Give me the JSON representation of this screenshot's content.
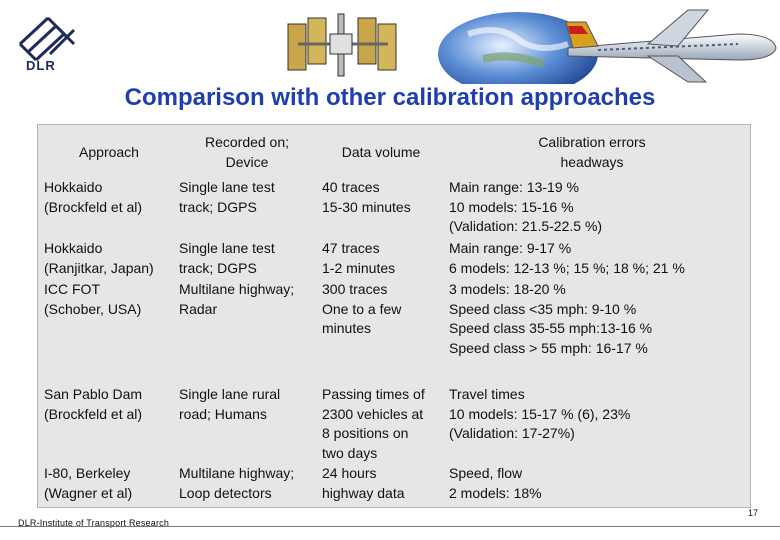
{
  "logo": {
    "text": "DLR"
  },
  "title": "Comparison with other calibration approaches",
  "table": {
    "headers": [
      "Approach",
      "Recorded on;\nDevice",
      "Data volume",
      "Calibration errors\nheadways"
    ],
    "rows": [
      [
        "Hokkaido\n(Brockfeld et al)",
        "Single lane test\ntrack; DGPS",
        "40 traces\n15-30 minutes",
        "Main range: 13-19 %\n10 models:  15-16 %\n(Validation:  21.5-22.5 %)"
      ],
      [
        "Hokkaido\n(Ranjitkar, Japan)",
        "Single lane test\ntrack; DGPS",
        "47 traces\n1-2 minutes",
        "Main range: 9-17 %\n6 models:   12-13 %; 15 %; 18 %; 21 %"
      ],
      [
        "ICC FOT\n(Schober, USA)",
        "Multilane highway;\nRadar",
        "300 traces\nOne to a few\nminutes",
        "3 models:  18-20 %\nSpeed class <35 mph:      9-10 %\nSpeed class 35-55 mph:13-16 %\nSpeed class > 55 mph:  16-17 %"
      ],
      [
        "San Pablo Dam\n(Brockfeld et al)",
        "Single lane rural\nroad; Humans",
        "Passing times of\n2300 vehicles at\n8 positions on\ntwo days",
        "Travel times\n10 models: 15-17 % (6), 23%\n(Validation:   17-27%)"
      ],
      [
        "I-80, Berkeley\n(Wagner et al)",
        "Multilane highway;\nLoop detectors",
        "24 hours\nhighway data",
        "Speed, flow\n2 models: 18%"
      ]
    ]
  },
  "footer": {
    "institute": "DLR-Institute of Transport Research",
    "page": "17"
  },
  "colors": {
    "title": "#1f3fb0",
    "table_bg": "#e6e6e6"
  }
}
